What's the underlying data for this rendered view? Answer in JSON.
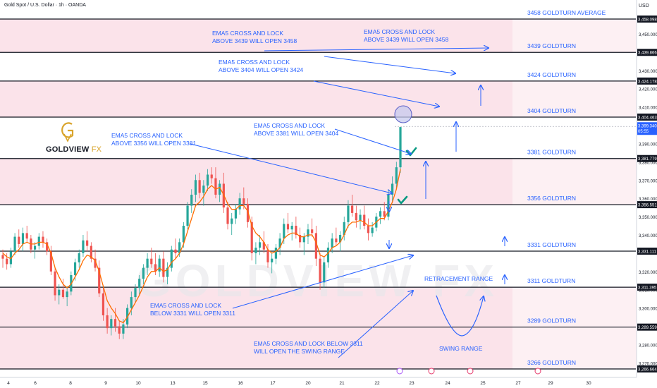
{
  "header": {
    "title": "Gold Spot / U.S. Dollar · 1h · OANDA",
    "currency": "USD"
  },
  "logo": {
    "name": "GOLDVIEW",
    "suffix": "FX"
  },
  "watermark": "GOLDVIEW FX",
  "colors": {
    "zone": "#fbe3ea",
    "level_line": "#131722",
    "annotation": "#2962ff",
    "text_blue": "#2962ff",
    "candle_up": "#26a69a",
    "candle_down": "#ef5350",
    "ema": "#ff6d00",
    "check": "#089981",
    "circle_fill": "#c7c9ee",
    "watermark": "#e7e7ea"
  },
  "chart_data": {
    "type": "candlestick",
    "symbol": "XAUUSD",
    "timeframe": "1h",
    "x_tick_labels": [
      "4",
      "6",
      "8",
      "9",
      "10",
      "13",
      "15",
      "16",
      "17",
      "20",
      "21",
      "22",
      "23",
      "24",
      "25",
      "27",
      "29",
      "30"
    ],
    "y_tick_labels": [
      "3,450.000",
      "3,440.000",
      "3,430.000",
      "3,420.000",
      "3,410.000",
      "3,390.000",
      "3,380.000",
      "3,370.000",
      "3,360.000",
      "3,350.000",
      "3,340.000",
      "3,320.000",
      "3,310.000",
      "3,300.000",
      "3,290.000",
      "3,280.000",
      "3,270.000"
    ],
    "ylim": [
      3265,
      3460
    ],
    "price_badges": [
      {
        "label": "3,458.098",
        "value": 3458.098
      },
      {
        "label": "3,439.866",
        "value": 3439.866
      },
      {
        "label": "3,424.178",
        "value": 3424.178
      },
      {
        "label": "3,404.463",
        "value": 3404.463
      },
      {
        "label": "3,381.779",
        "value": 3381.779
      },
      {
        "label": "3,356.551",
        "value": 3356.551
      },
      {
        "label": "3,331.111",
        "value": 3331.111
      },
      {
        "label": "3,311.395",
        "value": 3311.395
      },
      {
        "label": "3,289.559",
        "value": 3289.559
      },
      {
        "label": "3,266.664",
        "value": 3266.664
      }
    ],
    "current_price": {
      "label": "3,399.340",
      "time": "05:55",
      "value": 3399.34
    },
    "levels": [
      {
        "value": 3458.098,
        "label": "3458 GOLDTURN AVERAGE"
      },
      {
        "value": 3439.866,
        "label": "3439 GOLDTURN"
      },
      {
        "value": 3424.178,
        "label": "3424 GOLDTURN"
      },
      {
        "value": 3404.463,
        "label": "3404 GOLDTURN"
      },
      {
        "value": 3381.779,
        "label": "3381 GOLDTURN"
      },
      {
        "value": 3356.551,
        "label": "3356 GOLDTURN"
      },
      {
        "value": 3331.111,
        "label": "3331 GOLDTURN"
      },
      {
        "value": 3311.395,
        "label": "3311 GOLDTURN"
      },
      {
        "value": 3289.559,
        "label": "3289 GOLDTURN"
      },
      {
        "value": 3266.664,
        "label": "3266 GOLDTURN"
      }
    ],
    "zones": [
      [
        3439.866,
        3458.098
      ],
      [
        3404.463,
        3424.178
      ],
      [
        3356.551,
        3381.779
      ],
      [
        3289.559,
        3311.395
      ],
      [
        3266.664,
        3289.559
      ]
    ],
    "candles": [
      [
        3329,
        3332,
        3322,
        3327
      ],
      [
        3327,
        3330,
        3321,
        3324
      ],
      [
        3324,
        3333,
        3322,
        3331
      ],
      [
        3331,
        3341,
        3329,
        3339
      ],
      [
        3339,
        3343,
        3333,
        3335
      ],
      [
        3335,
        3344,
        3331,
        3341
      ],
      [
        3341,
        3345,
        3336,
        3338
      ],
      [
        3338,
        3340,
        3330,
        3332
      ],
      [
        3332,
        3336,
        3327,
        3334
      ],
      [
        3334,
        3341,
        3332,
        3339
      ],
      [
        3339,
        3342,
        3333,
        3336
      ],
      [
        3336,
        3338,
        3329,
        3331
      ],
      [
        3331,
        3334,
        3318,
        3320
      ],
      [
        3320,
        3322,
        3304,
        3307
      ],
      [
        3307,
        3313,
        3302,
        3310
      ],
      [
        3310,
        3316,
        3305,
        3306
      ],
      [
        3306,
        3312,
        3301,
        3309
      ],
      [
        3309,
        3320,
        3307,
        3318
      ],
      [
        3318,
        3327,
        3315,
        3325
      ],
      [
        3325,
        3332,
        3322,
        3330
      ],
      [
        3330,
        3340,
        3328,
        3337
      ],
      [
        3337,
        3342,
        3331,
        3334
      ],
      [
        3334,
        3336,
        3325,
        3327
      ],
      [
        3327,
        3332,
        3320,
        3322
      ],
      [
        3322,
        3326,
        3306,
        3308
      ],
      [
        3308,
        3311,
        3293,
        3296
      ],
      [
        3296,
        3300,
        3286,
        3289
      ],
      [
        3289,
        3296,
        3285,
        3294
      ],
      [
        3294,
        3300,
        3287,
        3290
      ],
      [
        3290,
        3293,
        3283,
        3286
      ],
      [
        3286,
        3294,
        3283,
        3291
      ],
      [
        3291,
        3302,
        3289,
        3300
      ],
      [
        3300,
        3309,
        3296,
        3306
      ],
      [
        3306,
        3313,
        3303,
        3311
      ],
      [
        3311,
        3318,
        3307,
        3316
      ],
      [
        3316,
        3324,
        3313,
        3322
      ],
      [
        3322,
        3330,
        3318,
        3327
      ],
      [
        3327,
        3333,
        3322,
        3324
      ],
      [
        3324,
        3330,
        3318,
        3320
      ],
      [
        3320,
        3329,
        3317,
        3327
      ],
      [
        3327,
        3331,
        3314,
        3317
      ],
      [
        3317,
        3325,
        3313,
        3322
      ],
      [
        3322,
        3334,
        3320,
        3332
      ],
      [
        3332,
        3338,
        3327,
        3330
      ],
      [
        3330,
        3338,
        3328,
        3336
      ],
      [
        3336,
        3347,
        3333,
        3345
      ],
      [
        3345,
        3358,
        3343,
        3356
      ],
      [
        3356,
        3365,
        3352,
        3362
      ],
      [
        3362,
        3373,
        3358,
        3370
      ],
      [
        3370,
        3374,
        3360,
        3363
      ],
      [
        3363,
        3370,
        3356,
        3367
      ],
      [
        3367,
        3376,
        3364,
        3373
      ],
      [
        3373,
        3377,
        3368,
        3371
      ],
      [
        3371,
        3377,
        3360,
        3362
      ],
      [
        3362,
        3370,
        3358,
        3368
      ],
      [
        3368,
        3374,
        3352,
        3355
      ],
      [
        3355,
        3358,
        3343,
        3346
      ],
      [
        3346,
        3352,
        3340,
        3349
      ],
      [
        3349,
        3357,
        3346,
        3354
      ],
      [
        3354,
        3363,
        3351,
        3360
      ],
      [
        3360,
        3366,
        3354,
        3357
      ],
      [
        3357,
        3360,
        3344,
        3347
      ],
      [
        3347,
        3350,
        3326,
        3330
      ],
      [
        3330,
        3336,
        3324,
        3333
      ],
      [
        3333,
        3340,
        3329,
        3336
      ],
      [
        3336,
        3342,
        3330,
        3332
      ],
      [
        3332,
        3335,
        3322,
        3325
      ],
      [
        3325,
        3330,
        3319,
        3327
      ],
      [
        3327,
        3335,
        3324,
        3333
      ],
      [
        3333,
        3341,
        3329,
        3338
      ],
      [
        3338,
        3349,
        3335,
        3346
      ],
      [
        3346,
        3352,
        3341,
        3343
      ],
      [
        3343,
        3347,
        3337,
        3345
      ],
      [
        3345,
        3350,
        3338,
        3340
      ],
      [
        3340,
        3344,
        3333,
        3336
      ],
      [
        3336,
        3341,
        3329,
        3339
      ],
      [
        3339,
        3346,
        3335,
        3343
      ],
      [
        3343,
        3349,
        3339,
        3341
      ],
      [
        3341,
        3345,
        3323,
        3327
      ],
      [
        3327,
        3330,
        3310,
        3314
      ],
      [
        3314,
        3328,
        3311,
        3325
      ],
      [
        3325,
        3336,
        3322,
        3333
      ],
      [
        3333,
        3341,
        3330,
        3338
      ],
      [
        3338,
        3344,
        3334,
        3336
      ],
      [
        3336,
        3342,
        3331,
        3340
      ],
      [
        3340,
        3350,
        3337,
        3347
      ],
      [
        3347,
        3359,
        3344,
        3356
      ],
      [
        3356,
        3362,
        3350,
        3352
      ],
      [
        3352,
        3356,
        3344,
        3348
      ],
      [
        3348,
        3354,
        3343,
        3351
      ],
      [
        3351,
        3356,
        3343,
        3345
      ],
      [
        3345,
        3349,
        3337,
        3341
      ],
      [
        3341,
        3347,
        3339,
        3344
      ],
      [
        3344,
        3352,
        3342,
        3350
      ],
      [
        3350,
        3355,
        3346,
        3353
      ],
      [
        3353,
        3358,
        3348,
        3350
      ],
      [
        3350,
        3365,
        3348,
        3362
      ],
      [
        3362,
        3372,
        3358,
        3368
      ],
      [
        3368,
        3380,
        3365,
        3377
      ],
      [
        3377,
        3399,
        3374,
        3399
      ]
    ],
    "ema": [
      3330,
      3328,
      3327,
      3330,
      3332,
      3335,
      3336,
      3335,
      3335,
      3336,
      3336,
      3335,
      3330,
      3322,
      3317,
      3313,
      3311,
      3313,
      3317,
      3321,
      3326,
      3329,
      3328,
      3326,
      3320,
      3312,
      3304,
      3300,
      3297,
      3293,
      3292,
      3295,
      3299,
      3303,
      3307,
      3312,
      3317,
      3320,
      3320,
      3322,
      3320,
      3321,
      3325,
      3327,
      3330,
      3335,
      3342,
      3349,
      3356,
      3358,
      3361,
      3365,
      3367,
      3365,
      3366,
      3362,
      3357,
      3354,
      3354,
      3356,
      3356,
      3353,
      3345,
      3341,
      3339,
      3336,
      3332,
      3330,
      3331,
      3333,
      3338,
      3340,
      3341,
      3341,
      3339,
      3339,
      3340,
      3340,
      3336,
      3329,
      3328,
      3330,
      3333,
      3334,
      3336,
      3340,
      3345,
      3347,
      3347,
      3348,
      3347,
      3345,
      3345,
      3347,
      3349,
      3349,
      3353,
      3358,
      3365,
      3376
    ]
  },
  "annotations": [
    {
      "lines": [
        "EMA5 CROSS AND LOCK",
        "ABOVE 3439 WILL OPEN 3458"
      ],
      "id": "ann-3439-a"
    },
    {
      "lines": [
        "EMA5 CROSS AND LOCK",
        "ABOVE 3439 WILL OPEN 3458"
      ],
      "id": "ann-3439-b"
    },
    {
      "lines": [
        "EMA5 CROSS AND LOCK",
        "ABOVE 3404 WILL OPEN 3424"
      ],
      "id": "ann-3404"
    },
    {
      "lines": [
        "EMA5 CROSS AND LOCK",
        "ABOVE 3381 WILL OPEN 3404"
      ],
      "id": "ann-3381"
    },
    {
      "lines": [
        "EMA5 CROSS AND LOCK",
        "ABOVE 3356 WILL OPEN 3381"
      ],
      "id": "ann-3356"
    },
    {
      "lines": [
        "EMA5 CROSS AND LOCK",
        "BELOW 3331 WILL OPEN 3311"
      ],
      "id": "ann-3331"
    },
    {
      "lines": [
        "EMA5 CROSS AND LOCK BELOW 3311",
        "WILL OPEN THE SWING RANGE"
      ],
      "id": "ann-3311"
    },
    {
      "lines": [
        "RETRACEMENT RANGE"
      ],
      "id": "ann-retracement"
    },
    {
      "lines": [
        "SWING RANGE"
      ],
      "id": "ann-swing"
    }
  ]
}
